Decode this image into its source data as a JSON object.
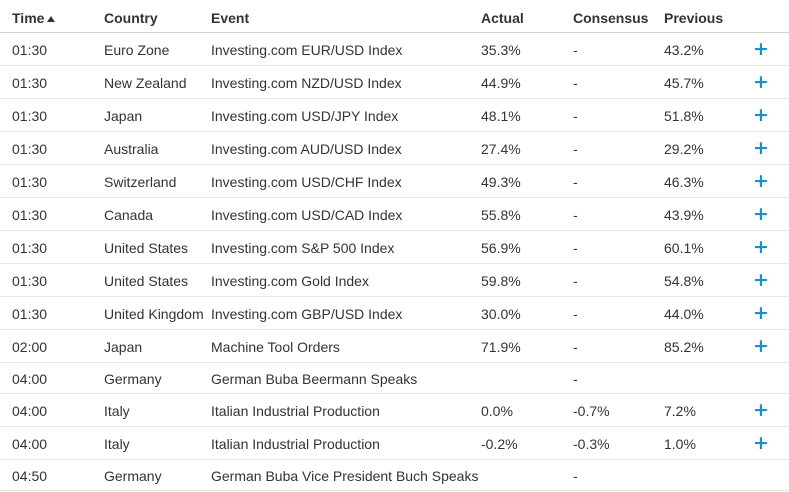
{
  "header": {
    "time": "Time",
    "country": "Country",
    "event": "Event",
    "actual": "Actual",
    "consensus": "Consensus",
    "previous": "Previous"
  },
  "expand_symbol": "+",
  "accent_color": "#1a8fc9",
  "rows": [
    {
      "time": "01:30",
      "country": "Euro Zone",
      "event": "Investing.com EUR/USD Index",
      "actual": "35.3%",
      "consensus": "-",
      "previous": "43.2%",
      "expandable": true
    },
    {
      "time": "01:30",
      "country": "New Zealand",
      "event": "Investing.com NZD/USD Index",
      "actual": "44.9%",
      "consensus": "-",
      "previous": "45.7%",
      "expandable": true
    },
    {
      "time": "01:30",
      "country": "Japan",
      "event": "Investing.com USD/JPY Index",
      "actual": "48.1%",
      "consensus": "-",
      "previous": "51.8%",
      "expandable": true
    },
    {
      "time": "01:30",
      "country": "Australia",
      "event": "Investing.com AUD/USD Index",
      "actual": "27.4%",
      "consensus": "-",
      "previous": "29.2%",
      "expandable": true
    },
    {
      "time": "01:30",
      "country": "Switzerland",
      "event": "Investing.com USD/CHF Index",
      "actual": "49.3%",
      "consensus": "-",
      "previous": "46.3%",
      "expandable": true
    },
    {
      "time": "01:30",
      "country": "Canada",
      "event": "Investing.com USD/CAD Index",
      "actual": "55.8%",
      "consensus": "-",
      "previous": "43.9%",
      "expandable": true
    },
    {
      "time": "01:30",
      "country": "United States",
      "event": "Investing.com S&P 500 Index",
      "actual": "56.9%",
      "consensus": "-",
      "previous": "60.1%",
      "expandable": true
    },
    {
      "time": "01:30",
      "country": "United States",
      "event": "Investing.com Gold Index",
      "actual": "59.8%",
      "consensus": "-",
      "previous": "54.8%",
      "expandable": true
    },
    {
      "time": "01:30",
      "country": "United Kingdom",
      "event": "Investing.com GBP/USD Index",
      "actual": "30.0%",
      "consensus": "-",
      "previous": "44.0%",
      "expandable": true
    },
    {
      "time": "02:00",
      "country": "Japan",
      "event": "Machine Tool Orders",
      "actual": "71.9%",
      "consensus": "-",
      "previous": "85.2%",
      "expandable": true
    },
    {
      "time": "04:00",
      "country": "Germany",
      "event": "German Buba Beermann Speaks",
      "actual": "",
      "consensus": "-",
      "previous": "",
      "expandable": false
    },
    {
      "time": "04:00",
      "country": "Italy",
      "event": "Italian Industrial Production",
      "actual": "0.0%",
      "consensus": "-0.7%",
      "previous": "7.2%",
      "expandable": true
    },
    {
      "time": "04:00",
      "country": "Italy",
      "event": "Italian Industrial Production",
      "actual": "-0.2%",
      "consensus": "-0.3%",
      "previous": "1.0%",
      "expandable": true
    },
    {
      "time": "04:50",
      "country": "Germany",
      "event": "German Buba Vice President Buch Speaks",
      "actual": "",
      "consensus": "-",
      "previous": "",
      "expandable": false
    }
  ]
}
